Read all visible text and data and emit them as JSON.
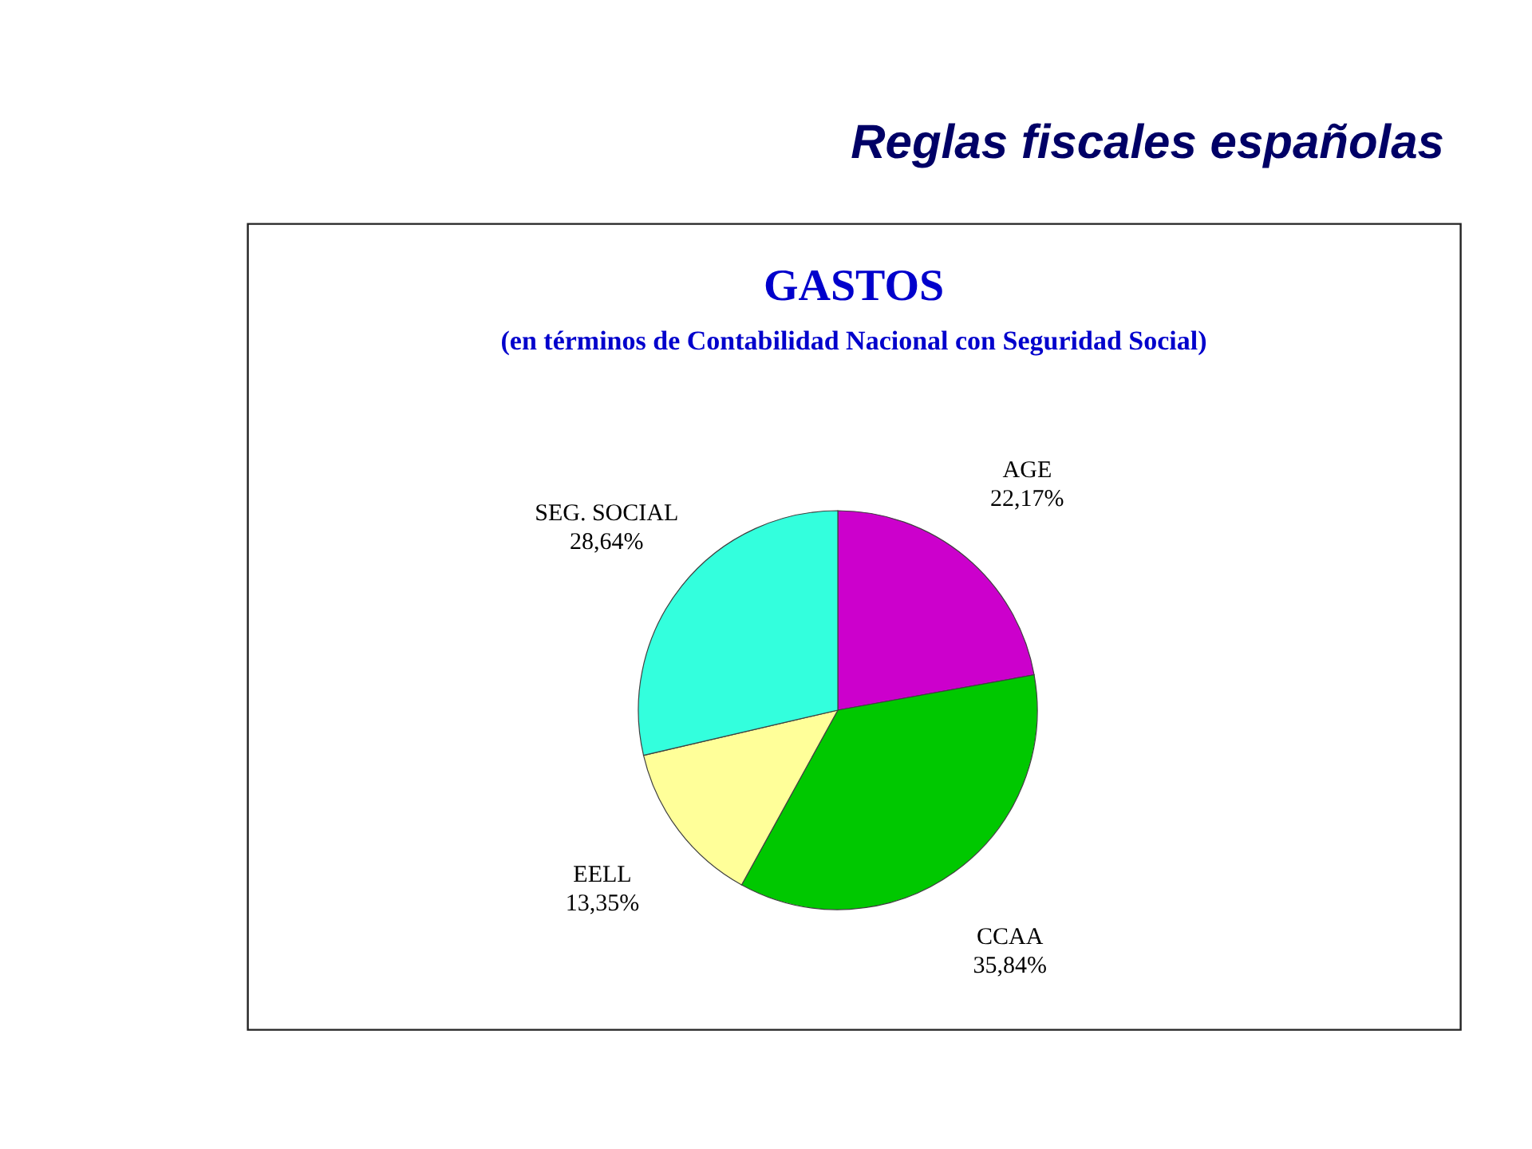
{
  "chart_data": {
    "type": "pie",
    "title": "GASTOS",
    "subtitle": "(en términos de Contabilidad Nacional con Seguridad Social)",
    "annotations": [
      "Reglas fiscales españolas"
    ],
    "categories": [
      "AGE",
      "CCAA",
      "EELL",
      "SEG. SOCIAL"
    ],
    "values": [
      22.17,
      35.84,
      13.35,
      28.64
    ],
    "colors": [
      "#cc00cc",
      "#00c800",
      "#ffff99",
      "#33ffdd"
    ],
    "value_labels": [
      "22,17%",
      "35,84%",
      "13,35%",
      "28,64%"
    ]
  }
}
